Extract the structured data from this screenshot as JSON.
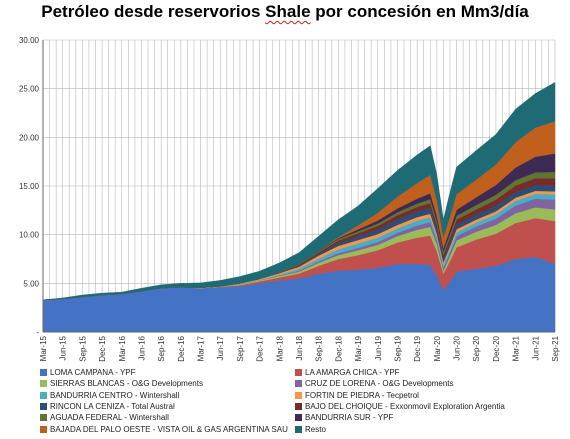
{
  "chart_data": {
    "type": "area",
    "stacked": true,
    "title": "Petróleo desde reservorios Shale por concesión en Mm3/día",
    "xlabel": "",
    "ylabel": "",
    "ylim": [
      0,
      30
    ],
    "yticks": [
      "-",
      "5.00",
      "10.00",
      "15.00",
      "20.00",
      "25.00",
      "30.00"
    ],
    "xticks": [
      "Mar-15",
      "Jun-15",
      "Sep-15",
      "Dec-15",
      "Mar-16",
      "Jun-16",
      "Sep-16",
      "Dec-16",
      "Mar-17",
      "Jun-17",
      "Sep-17",
      "Dec-17",
      "Mar-18",
      "Jun-18",
      "Sep-18",
      "Dec-18",
      "Mar-19",
      "Jun-19",
      "Sep-19",
      "Dec-19",
      "Mar-20",
      "Jun-20",
      "Sep-20",
      "Dec-20",
      "Mar-21",
      "Jun-21",
      "Sep-21"
    ],
    "x_start": "Mar-15",
    "x_end": "Sep-21",
    "grid": true,
    "legend_position": "bottom",
    "x_knots": [
      "Mar-15",
      "Jun-15",
      "Sep-15",
      "Dec-15",
      "Mar-16",
      "Jun-16",
      "Sep-16",
      "Dec-16",
      "Mar-17",
      "Jun-17",
      "Sep-17",
      "Dec-17",
      "Mar-18",
      "Jun-18",
      "Sep-18",
      "Dec-18",
      "Mar-19",
      "Jun-19",
      "Sep-19",
      "Dec-19",
      "Feb-20",
      "Mar-20",
      "Apr-20",
      "May-20",
      "Jun-20",
      "Sep-20",
      "Dec-20",
      "Mar-21",
      "Jun-21",
      "Sep-21"
    ],
    "series": [
      {
        "name": "LOMA CAMPANA - YPF",
        "color": "#4472c4",
        "values": [
          3.3,
          3.4,
          3.6,
          3.8,
          3.9,
          4.2,
          4.5,
          4.6,
          4.5,
          4.6,
          4.7,
          5.0,
          5.3,
          5.5,
          6.0,
          6.3,
          6.4,
          6.6,
          7.0,
          7.0,
          6.9,
          5.8,
          4.3,
          5.2,
          6.2,
          6.5,
          6.8,
          7.5,
          7.7,
          7.0
        ]
      },
      {
        "name": "LA AMARGA CHICA - YPF",
        "color": "#c0504d",
        "values": [
          0,
          0,
          0,
          0,
          0,
          0,
          0,
          0,
          0,
          0.05,
          0.1,
          0.2,
          0.3,
          0.5,
          0.8,
          1.2,
          1.5,
          1.8,
          2.2,
          2.7,
          3.0,
          2.5,
          1.7,
          2.1,
          2.5,
          3.0,
          3.3,
          3.7,
          4.0,
          4.4
        ]
      },
      {
        "name": "SIERRAS BLANCAS - O&G Developments",
        "color": "#9bbb59",
        "values": [
          0,
          0,
          0,
          0,
          0,
          0,
          0,
          0,
          0.05,
          0.05,
          0.1,
          0.1,
          0.15,
          0.2,
          0.3,
          0.4,
          0.5,
          0.55,
          0.65,
          0.8,
          0.9,
          0.7,
          0.3,
          0.5,
          0.7,
          0.8,
          0.9,
          1.0,
          1.1,
          1.2
        ]
      },
      {
        "name": "CRUZ DE LORENA - O&G Developments",
        "color": "#8064a2",
        "values": [
          0,
          0,
          0,
          0,
          0,
          0,
          0,
          0,
          0,
          0,
          0,
          0,
          0.05,
          0.1,
          0.15,
          0.2,
          0.25,
          0.3,
          0.35,
          0.45,
          0.5,
          0.4,
          0.3,
          0.35,
          0.45,
          0.55,
          0.65,
          0.8,
          0.9,
          1.0
        ]
      },
      {
        "name": "BANDURRIA CENTRO - Wintershall",
        "color": "#4bacc6",
        "values": [
          0,
          0,
          0,
          0,
          0,
          0,
          0,
          0,
          0,
          0,
          0.05,
          0.05,
          0.1,
          0.2,
          0.3,
          0.4,
          0.45,
          0.45,
          0.45,
          0.5,
          0.5,
          0.4,
          0.3,
          0.35,
          0.4,
          0.4,
          0.45,
          0.5,
          0.5,
          0.55
        ]
      },
      {
        "name": "FORTIN DE PIEDRA - Tecpetrol",
        "color": "#f79646",
        "values": [
          0,
          0,
          0,
          0,
          0,
          0,
          0,
          0,
          0,
          0,
          0.05,
          0.1,
          0.15,
          0.2,
          0.3,
          0.35,
          0.35,
          0.35,
          0.35,
          0.35,
          0.35,
          0.3,
          0.25,
          0.3,
          0.3,
          0.3,
          0.3,
          0.3,
          0.3,
          0.3
        ]
      },
      {
        "name": "RINCON LA CENIZA - Total Austral",
        "color": "#2c4d75",
        "values": [
          0,
          0,
          0,
          0,
          0,
          0,
          0,
          0,
          0,
          0,
          0,
          0,
          0,
          0.1,
          0.2,
          0.3,
          0.4,
          0.5,
          0.6,
          0.6,
          0.6,
          0.5,
          0.4,
          0.45,
          0.5,
          0.5,
          0.6,
          0.6,
          0.6,
          0.6
        ]
      },
      {
        "name": "BAJO DEL CHOIQUE - Exxonmovil Exploration Argentia",
        "color": "#772c2a",
        "values": [
          0,
          0,
          0,
          0,
          0,
          0,
          0,
          0,
          0,
          0,
          0,
          0,
          0.05,
          0.1,
          0.15,
          0.25,
          0.3,
          0.35,
          0.4,
          0.45,
          0.5,
          0.45,
          0.4,
          0.45,
          0.5,
          0.55,
          0.6,
          0.65,
          0.7,
          0.75
        ]
      },
      {
        "name": "AGUADA FEDERAL - Wintershall",
        "color": "#5f7530",
        "values": [
          0,
          0,
          0,
          0,
          0,
          0,
          0,
          0,
          0,
          0,
          0,
          0,
          0,
          0.05,
          0.1,
          0.15,
          0.2,
          0.25,
          0.3,
          0.35,
          0.4,
          0.35,
          0.3,
          0.35,
          0.4,
          0.45,
          0.5,
          0.55,
          0.6,
          0.65
        ]
      },
      {
        "name": "BANDURRIA SUR - YPF",
        "color": "#3d2b55",
        "values": [
          0,
          0,
          0,
          0,
          0,
          0,
          0,
          0,
          0,
          0,
          0,
          0,
          0,
          0,
          0.05,
          0.1,
          0.2,
          0.3,
          0.4,
          0.5,
          0.6,
          0.55,
          0.4,
          0.5,
          0.6,
          0.8,
          1.0,
          1.3,
          1.6,
          1.9
        ]
      },
      {
        "name": "BAJADA DEL PALO OESTE - VISTA OIL & GAS ARGENTINA SAU",
        "color": "#c0601c",
        "values": [
          0,
          0,
          0,
          0,
          0,
          0,
          0,
          0,
          0,
          0,
          0,
          0,
          0,
          0,
          0,
          0.1,
          0.4,
          0.8,
          1.2,
          1.6,
          1.9,
          1.6,
          1.1,
          1.3,
          1.6,
          1.8,
          2.1,
          2.6,
          3.0,
          3.3
        ]
      },
      {
        "name": "Resto",
        "color": "#1f6b75",
        "values": [
          0,
          0.1,
          0.2,
          0.2,
          0.2,
          0.3,
          0.35,
          0.4,
          0.5,
          0.6,
          0.7,
          0.8,
          1.0,
          1.2,
          1.5,
          1.8,
          2.0,
          2.5,
          2.7,
          2.9,
          3.0,
          2.6,
          1.8,
          2.5,
          2.8,
          3.0,
          3.1,
          3.4,
          3.5,
          4.0
        ]
      }
    ],
    "legend": [
      [
        "LOMA CAMPANA - YPF",
        "LA AMARGA CHICA - YPF"
      ],
      [
        "SIERRAS BLANCAS - O&G Developments",
        "CRUZ DE LORENA - O&G Developments"
      ],
      [
        "BANDURRIA CENTRO - Wintershall",
        "FORTIN DE PIEDRA - Tecpetrol"
      ],
      [
        "RINCON LA CENIZA - Total Austral",
        "BAJO DEL CHOIQUE - Exxonmovil Exploration Argentia"
      ],
      [
        "AGUADA FEDERAL - Wintershall",
        "BANDURRIA SUR - YPF"
      ],
      [
        "BAJADA DEL PALO OESTE - VISTA OIL & GAS ARGENTINA SAU",
        "Resto"
      ]
    ]
  }
}
